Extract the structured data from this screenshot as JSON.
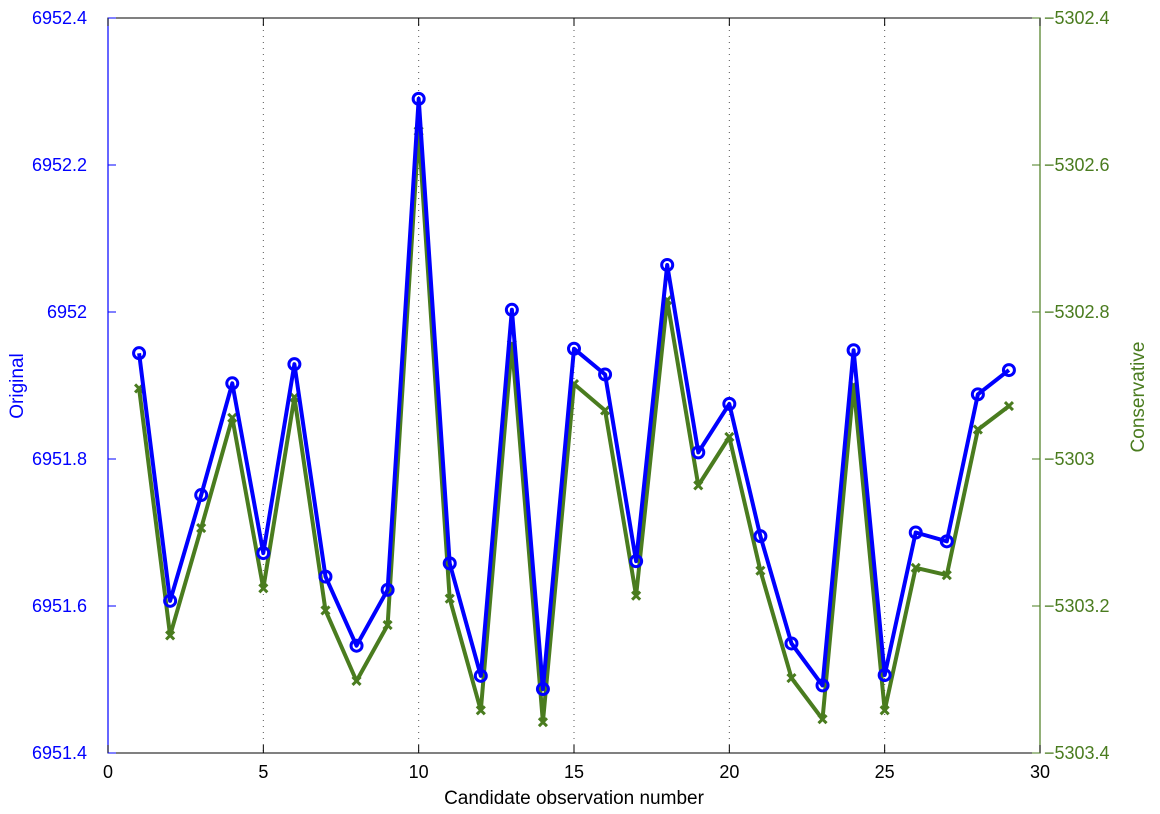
{
  "chart_data": {
    "type": "line",
    "title": "",
    "xlabel": "Candidate observation number",
    "ylabel_left": "Original",
    "ylabel_right": "Conservative",
    "xlim": [
      0,
      30
    ],
    "ylim_left": [
      6951.4,
      6952.4
    ],
    "ylim_right": [
      -5303.4,
      -5302.4
    ],
    "x_ticks": [
      0,
      5,
      10,
      15,
      20,
      25,
      30
    ],
    "x_tick_labels": [
      "0",
      "5",
      "10",
      "15",
      "20",
      "25",
      "30"
    ],
    "y_left_ticks": [
      6951.4,
      6951.6,
      6951.8,
      6952.0,
      6952.2,
      6952.4
    ],
    "y_left_tick_labels": [
      "6951.4",
      "6951.6",
      "6951.8",
      "6952",
      "6952.2",
      "6952.4"
    ],
    "y_right_ticks": [
      -5303.4,
      -5303.2,
      -5303.0,
      -5302.8,
      -5302.6,
      -5302.4
    ],
    "y_right_tick_labels": [
      "−5303.4",
      "−5303.2",
      "−5303",
      "−5302.8",
      "−5302.6",
      "−5302.4"
    ],
    "grid": "x-only dotted",
    "x": [
      1,
      2,
      3,
      4,
      5,
      6,
      7,
      8,
      9,
      10,
      11,
      12,
      13,
      14,
      15,
      16,
      17,
      18,
      19,
      20,
      21,
      22,
      23,
      24,
      25,
      26,
      27,
      28,
      29
    ],
    "series": [
      {
        "name": "Original",
        "axis": "left",
        "color": "#0000ff",
        "marker": "circle",
        "values": [
          6951.944,
          6951.607,
          6951.751,
          6951.903,
          6951.672,
          6951.929,
          6951.64,
          6951.546,
          6951.622,
          6952.29,
          6951.658,
          6951.505,
          6952.003,
          6951.487,
          6951.95,
          6951.915,
          6951.661,
          6952.064,
          6951.809,
          6951.875,
          6951.695,
          6951.549,
          6951.492,
          6951.948,
          6951.506,
          6951.7,
          6951.688,
          6951.888,
          6951.921
        ]
      },
      {
        "name": "Conservative",
        "axis": "right",
        "color": "#4a7c1f",
        "marker": "x",
        "values": [
          -5302.904,
          -5303.24,
          -5303.094,
          -5302.944,
          -5303.176,
          -5302.916,
          -5303.206,
          -5303.302,
          -5303.226,
          -5302.554,
          -5303.19,
          -5303.342,
          -5302.844,
          -5303.358,
          -5302.898,
          -5302.934,
          -5303.186,
          -5302.784,
          -5303.036,
          -5302.97,
          -5303.152,
          -5303.298,
          -5303.354,
          -5302.9,
          -5303.342,
          -5303.148,
          -5303.158,
          -5302.96,
          -5302.928
        ]
      }
    ]
  }
}
